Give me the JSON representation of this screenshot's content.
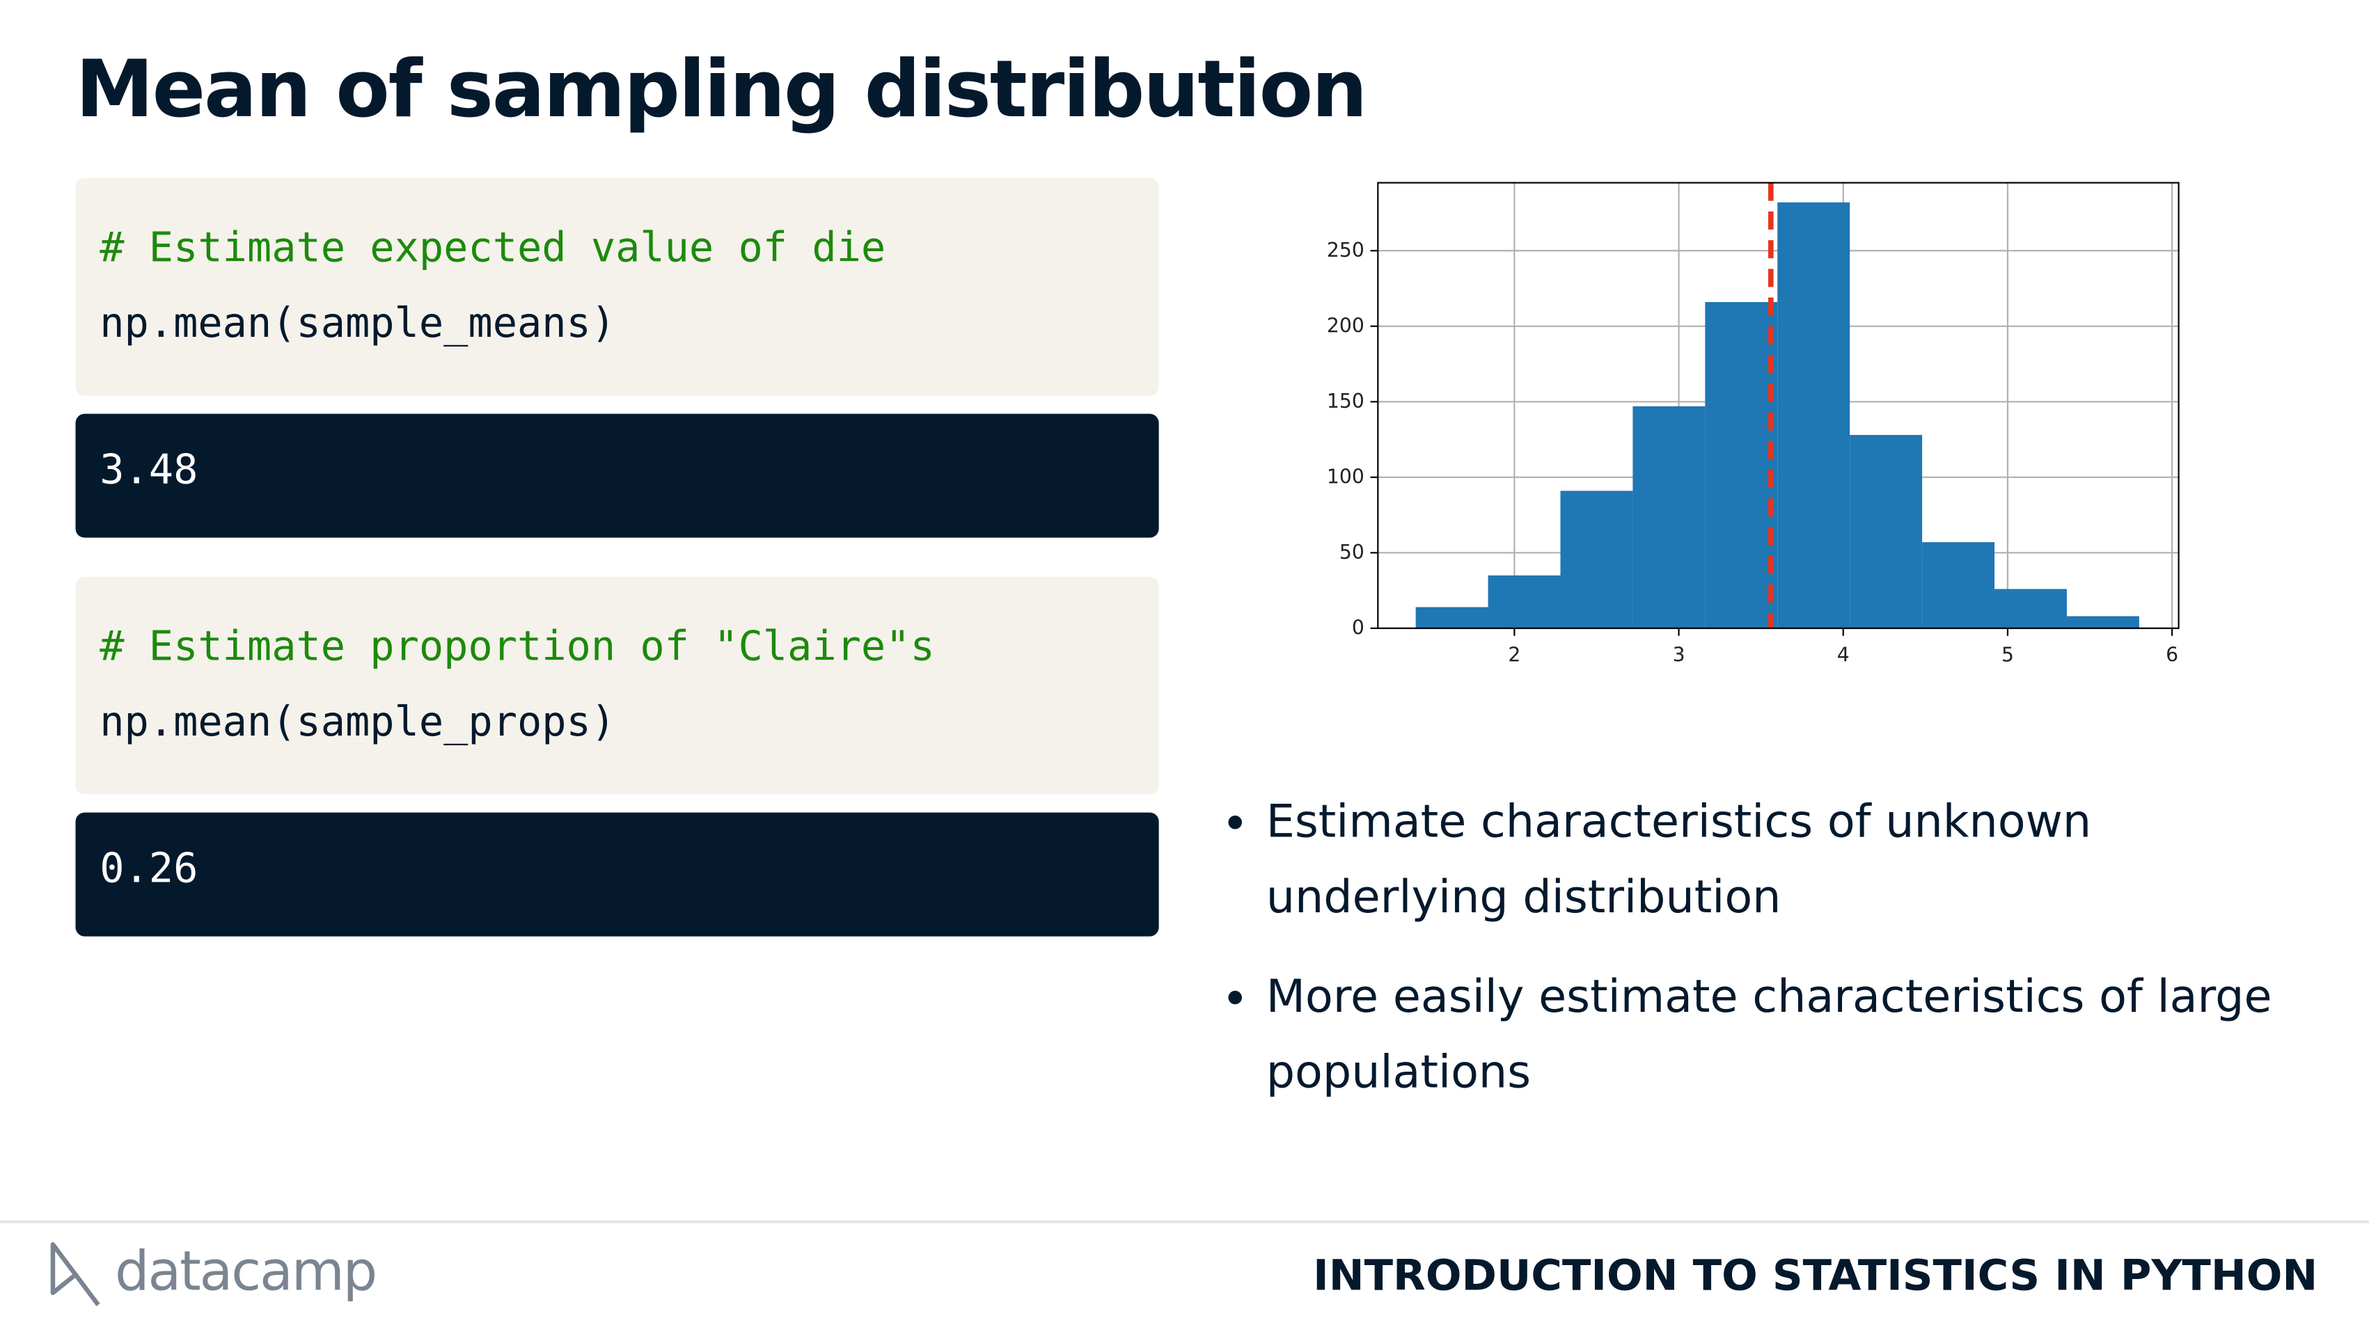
{
  "title": "Mean of sampling distribution",
  "code_blocks": [
    {
      "comment": "# Estimate expected value of die",
      "code": "np.mean(sample_means)",
      "output": "3.48"
    },
    {
      "comment": "# Estimate proportion of \"Claire\"s",
      "code": "np.mean(sample_props)",
      "output": "0.26"
    }
  ],
  "bullets": [
    "Estimate characteristics of unknown underlying distribution",
    "More easily estimate characteristics of large populations"
  ],
  "footer": {
    "logo": "datacamp",
    "course": "INTRODUCTION TO STATISTICS IN PYTHON"
  },
  "chart_data": {
    "type": "histogram",
    "bins": [
      1.4,
      1.84,
      2.28,
      2.72,
      3.16,
      3.6,
      4.04,
      4.48,
      4.92,
      5.36,
      5.8
    ],
    "counts": [
      14,
      35,
      91,
      147,
      216,
      282,
      128,
      57,
      26,
      8
    ],
    "color": "#1f77b4",
    "xlim": [
      1.17,
      6.04
    ],
    "ylim": [
      0,
      295
    ],
    "xticks": [
      2,
      3,
      4,
      5,
      6
    ],
    "yticks": [
      0,
      50,
      100,
      150,
      200,
      250
    ],
    "grid": true,
    "vline": {
      "x": 3.56,
      "color": "#e8341c"
    }
  }
}
